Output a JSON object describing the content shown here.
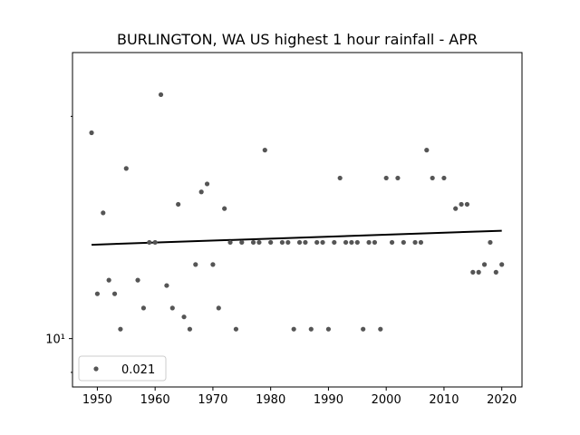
{
  "chart_data": {
    "type": "scatter",
    "title": "BURLINGTON, WA US highest 1 hour rainfall - APR",
    "xlabel": "",
    "ylabel": "",
    "y_scale": "log",
    "xlim": [
      1945.7,
      2023.5
    ],
    "ylim": [
      8.6,
      24.4
    ],
    "x_ticks": [
      1950,
      1960,
      1970,
      1980,
      1990,
      2000,
      2010,
      2020
    ],
    "y_ticks": [
      {
        "value": 10,
        "label": "10¹"
      }
    ],
    "grid": false,
    "legend": {
      "position": "lower-left",
      "entries": [
        {
          "label": "0.021"
        }
      ]
    },
    "colors": {
      "points": "#555555",
      "trend": "#000000"
    },
    "series": [
      {
        "name": "0.021",
        "points": [
          [
            1949,
            19.0
          ],
          [
            1950,
            11.5
          ],
          [
            1951,
            14.8
          ],
          [
            1952,
            12.0
          ],
          [
            1953,
            11.5
          ],
          [
            1954,
            10.3
          ],
          [
            1955,
            17.0
          ],
          [
            1957,
            12.0
          ],
          [
            1958,
            11.0
          ],
          [
            1959,
            13.5
          ],
          [
            1960,
            13.5
          ],
          [
            1961,
            21.4
          ],
          [
            1962,
            11.8
          ],
          [
            1963,
            11.0
          ],
          [
            1964,
            15.2
          ],
          [
            1965,
            10.7
          ],
          [
            1966,
            10.3
          ],
          [
            1967,
            12.6
          ],
          [
            1968,
            15.8
          ],
          [
            1969,
            16.2
          ],
          [
            1970,
            12.6
          ],
          [
            1971,
            11.0
          ],
          [
            1972,
            15.0
          ],
          [
            1973,
            13.5
          ],
          [
            1974,
            10.3
          ],
          [
            1975,
            13.5
          ],
          [
            1977,
            13.5
          ],
          [
            1978,
            13.5
          ],
          [
            1979,
            18.0
          ],
          [
            1980,
            13.5
          ],
          [
            1982,
            13.5
          ],
          [
            1983,
            13.5
          ],
          [
            1984,
            10.3
          ],
          [
            1985,
            13.5
          ],
          [
            1986,
            13.5
          ],
          [
            1987,
            10.3
          ],
          [
            1988,
            13.5
          ],
          [
            1989,
            13.5
          ],
          [
            1990,
            10.3
          ],
          [
            1991,
            13.5
          ],
          [
            1992,
            16.5
          ],
          [
            1993,
            13.5
          ],
          [
            1994,
            13.5
          ],
          [
            1995,
            13.5
          ],
          [
            1996,
            10.3
          ],
          [
            1997,
            13.5
          ],
          [
            1998,
            13.5
          ],
          [
            1999,
            10.3
          ],
          [
            2000,
            16.5
          ],
          [
            2001,
            13.5
          ],
          [
            2002,
            16.5
          ],
          [
            2003,
            13.5
          ],
          [
            2005,
            13.5
          ],
          [
            2006,
            13.5
          ],
          [
            2007,
            18.0
          ],
          [
            2008,
            16.5
          ],
          [
            2010,
            16.5
          ],
          [
            2012,
            15.0
          ],
          [
            2013,
            15.2
          ],
          [
            2014,
            15.2
          ],
          [
            2015,
            12.3
          ],
          [
            2016,
            12.3
          ],
          [
            2017,
            12.6
          ],
          [
            2018,
            13.5
          ],
          [
            2019,
            12.3
          ],
          [
            2020,
            12.6
          ]
        ]
      }
    ],
    "trend_line": {
      "x": [
        1949,
        2020
      ],
      "y": [
        13.4,
        14.0
      ]
    }
  }
}
